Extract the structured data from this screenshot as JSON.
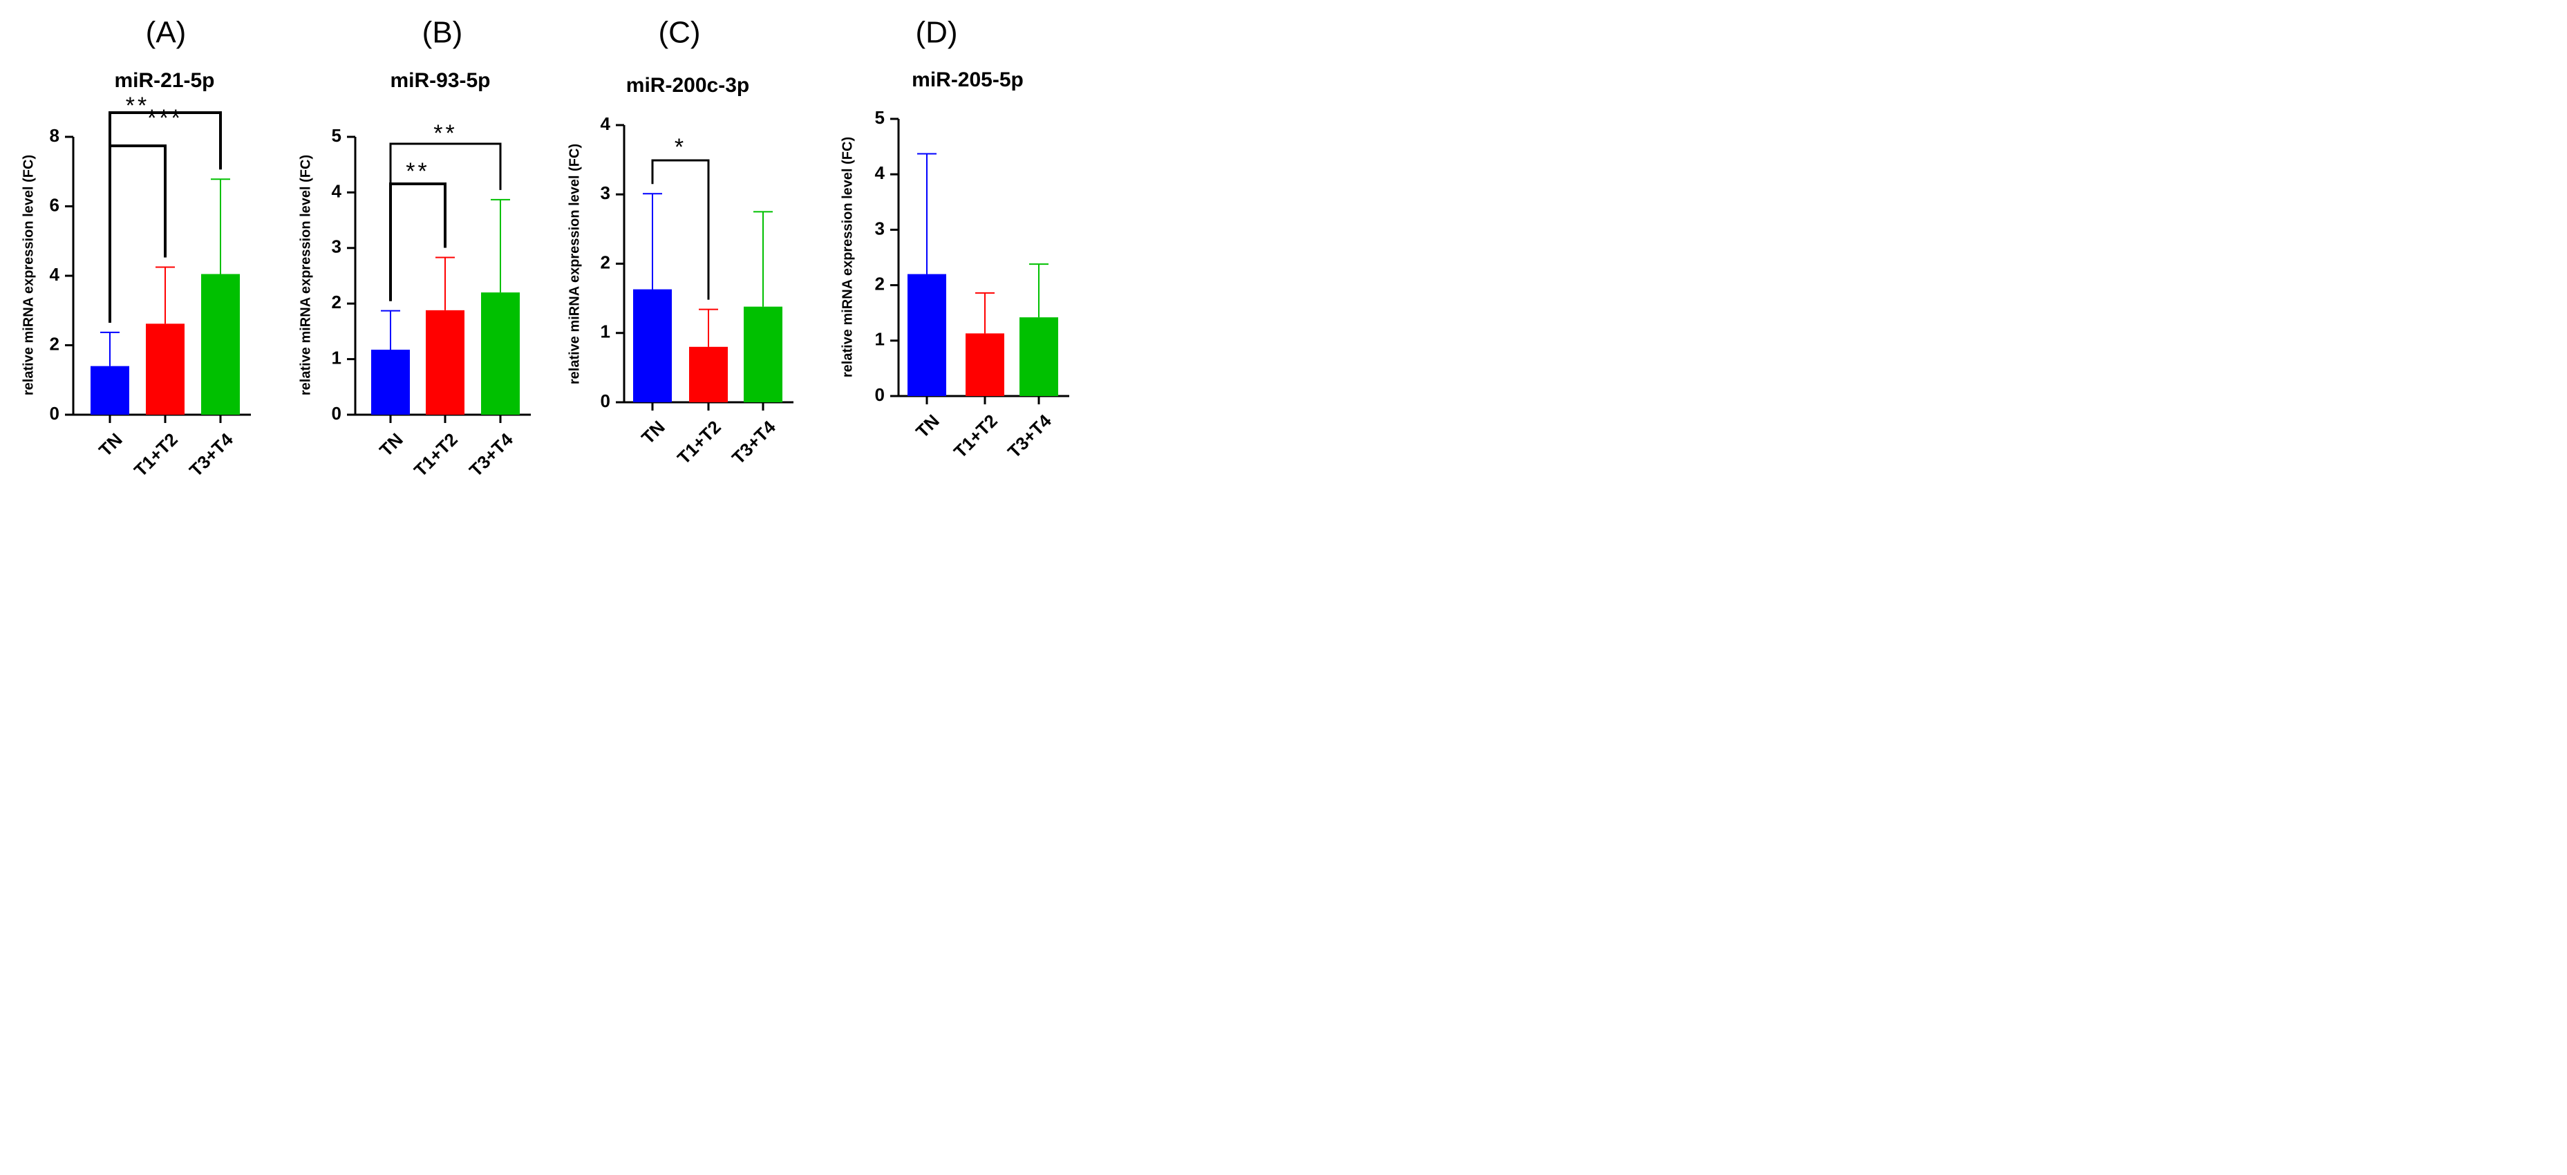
{
  "figure_note": "Four panels of relative miRNA expression (fold change) by tumor stage group",
  "chart_data": [
    {
      "type": "bar",
      "panel_label": "(A)",
      "title": "miR-21-5p",
      "ylabel": "relative miRNA expression level (FC)",
      "xlabel": "",
      "categories": [
        "TN",
        "T1+T2",
        "T3+T4"
      ],
      "values": [
        1.4,
        2.62,
        4.05
      ],
      "error_upper": [
        2.37,
        4.25,
        6.78
      ],
      "colors": [
        "#0000ff",
        "#ff0000",
        "#00c000"
      ],
      "ylim": [
        0,
        8
      ],
      "yticks": [
        "0",
        "2",
        "4",
        "6",
        "8"
      ],
      "grid": false,
      "significance": [
        {
          "from": 0,
          "to": 1,
          "label": "**"
        },
        {
          "from": 0,
          "to": 2,
          "label": "***"
        }
      ]
    },
    {
      "type": "bar",
      "panel_label": "(B)",
      "title": "miR-93-5p",
      "ylabel": "relative miRNA expression level (FC)",
      "xlabel": "",
      "categories": [
        "TN",
        "T1+T2",
        "T3+T4"
      ],
      "values": [
        1.17,
        1.88,
        2.2
      ],
      "error_upper": [
        1.87,
        2.83,
        3.87
      ],
      "colors": [
        "#0000ff",
        "#ff0000",
        "#00c000"
      ],
      "ylim": [
        0,
        5
      ],
      "yticks": [
        "0",
        "1",
        "2",
        "3",
        "4",
        "5"
      ],
      "grid": false,
      "significance": [
        {
          "from": 0,
          "to": 1,
          "label": "**"
        },
        {
          "from": 0,
          "to": 2,
          "label": "**"
        }
      ]
    },
    {
      "type": "bar",
      "panel_label": "(C)",
      "title": "miR-200c-3p",
      "ylabel": "relative miRNA expression level (FC)",
      "xlabel": "",
      "categories": [
        "TN",
        "T1+T2",
        "T3+T4"
      ],
      "values": [
        1.63,
        0.8,
        1.38
      ],
      "error_upper": [
        3.01,
        1.34,
        2.75
      ],
      "colors": [
        "#0000ff",
        "#ff0000",
        "#00c000"
      ],
      "ylim": [
        0,
        4
      ],
      "yticks": [
        "0",
        "1",
        "2",
        "3",
        "4"
      ],
      "grid": false,
      "significance": [
        {
          "from": 0,
          "to": 1,
          "label": "*"
        }
      ]
    },
    {
      "type": "bar",
      "panel_label": "(D)",
      "title": "miR-205-5p",
      "ylabel": "relative miRNA expression level (FC)",
      "xlabel": "",
      "categories": [
        "TN",
        "T1+T2",
        "T3+T4"
      ],
      "values": [
        2.2,
        1.13,
        1.42
      ],
      "error_upper": [
        4.37,
        1.86,
        2.38
      ],
      "colors": [
        "#0000ff",
        "#ff0000",
        "#00c000"
      ],
      "ylim": [
        0,
        5
      ],
      "yticks": [
        "0",
        "1",
        "2",
        "3",
        "4",
        "5"
      ],
      "grid": false,
      "significance": []
    }
  ]
}
